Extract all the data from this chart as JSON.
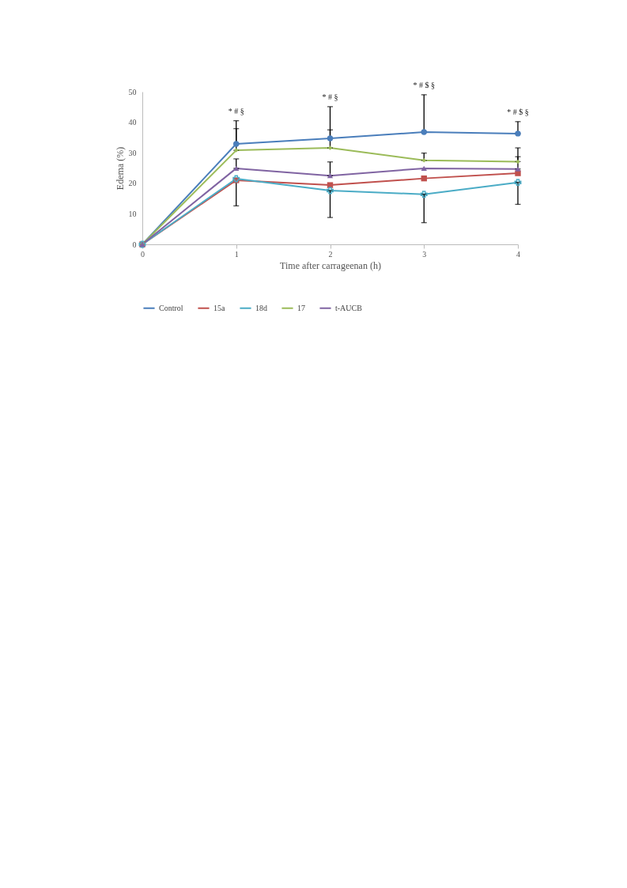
{
  "chart_data": {
    "type": "line",
    "xlabel": "Time after carrageenan (h)",
    "ylabel": "Edema (%)",
    "x": [
      0,
      1,
      2,
      3,
      4
    ],
    "xlim": [
      0,
      4
    ],
    "xticks": [
      0,
      1,
      2,
      3,
      4
    ],
    "ylim": [
      0,
      50
    ],
    "yticks": [
      0,
      10,
      20,
      30,
      40,
      50
    ],
    "grid": false,
    "legend": "bottom",
    "series": [
      {
        "name": "Control",
        "color": "#4a7ebb",
        "marker": "circle",
        "values": [
          0,
          32.9,
          34.7,
          36.8,
          36.3
        ],
        "errors": [
          null,
          [
            32.9,
            40.5
          ],
          [
            34.7,
            45.1
          ],
          [
            36.8,
            49.0
          ],
          [
            36.3,
            40.2
          ]
        ]
      },
      {
        "name": "15a",
        "color": "#c0504d",
        "marker": "square",
        "values": [
          0,
          21.0,
          19.4,
          21.6,
          23.3
        ],
        "errors": [
          null,
          [
            12.6,
            21.0
          ],
          null,
          null,
          null
        ]
      },
      {
        "name": "18d",
        "color": "#4bacc6",
        "marker": "cross",
        "values": [
          0,
          21.5,
          17.6,
          16.4,
          20.3
        ],
        "errors": [
          null,
          null,
          [
            8.8,
            17.6
          ],
          [
            7.1,
            16.4
          ],
          [
            13.1,
            20.3
          ]
        ]
      },
      {
        "name": "17",
        "color": "#9bbb59",
        "marker": "diamond",
        "values": [
          0,
          30.8,
          31.6,
          27.5,
          27.1
        ],
        "errors": [
          null,
          [
            30.8,
            37.9
          ],
          [
            31.6,
            37.5
          ],
          [
            27.5,
            29.9
          ],
          [
            27.1,
            31.6
          ]
        ]
      },
      {
        "name": "t-AUCB",
        "color": "#8064a2",
        "marker": "triangle",
        "values": [
          0,
          24.9,
          22.5,
          24.9,
          24.7
        ],
        "errors": [
          null,
          [
            24.9,
            28.0
          ],
          [
            22.5,
            27.0
          ],
          null,
          [
            24.7,
            28.7
          ]
        ]
      }
    ],
    "annotations": [
      "* #  §",
      "* # §",
      "* # $ §",
      "* # $ §"
    ]
  }
}
